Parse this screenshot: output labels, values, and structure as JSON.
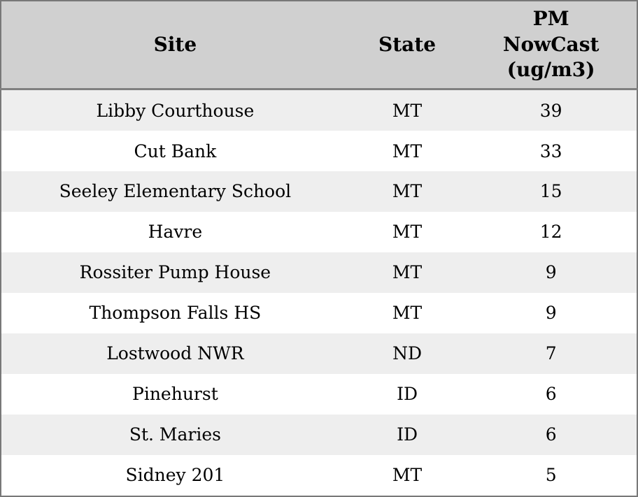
{
  "chart_data": {
    "type": "table",
    "columns": [
      "Site",
      "State",
      "PM NowCast (ug/m3)"
    ],
    "rows": [
      {
        "site": "Libby Courthouse",
        "state": "MT",
        "pm": "39"
      },
      {
        "site": "Cut Bank",
        "state": "MT",
        "pm": "33"
      },
      {
        "site": "Seeley Elementary School",
        "state": "MT",
        "pm": "15"
      },
      {
        "site": "Havre",
        "state": "MT",
        "pm": "12"
      },
      {
        "site": "Rossiter Pump House",
        "state": "MT",
        "pm": "9"
      },
      {
        "site": "Thompson Falls HS",
        "state": "MT",
        "pm": "9"
      },
      {
        "site": "Lostwood NWR",
        "state": "ND",
        "pm": "7"
      },
      {
        "site": "Pinehurst",
        "state": "ID",
        "pm": "6"
      },
      {
        "site": "St. Maries",
        "state": "ID",
        "pm": "6"
      },
      {
        "site": "Sidney 201",
        "state": "MT",
        "pm": "5"
      }
    ]
  },
  "display": {
    "pm_header_wrapped": "PM\nNowCast\n(ug/m3)"
  },
  "colors": {
    "header_bg": "#d0d0d0",
    "row_alt_bg": "#eeeeee",
    "row_bg": "#ffffff",
    "outer_border": "#787878",
    "header_rule": "#808080",
    "text": "#000000"
  }
}
